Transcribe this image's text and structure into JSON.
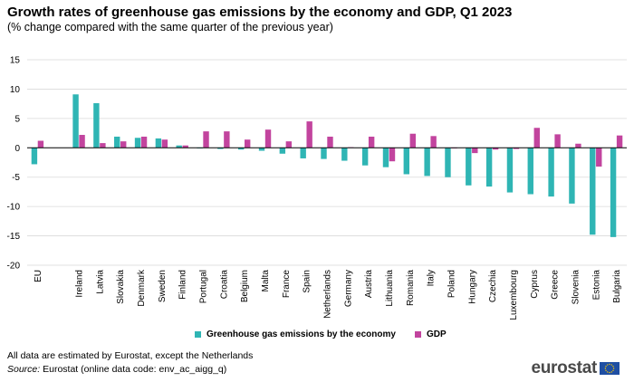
{
  "title": "Growth rates of greenhouse gas emissions by the economy and GDP, Q1 2023",
  "subtitle": "(% change compared with the same quarter of the previous year)",
  "footnote": "All data are estimated by Eurostat, except the Netherlands",
  "source_label": "Source:",
  "source_text": " Eurostat (online data code: env_ac_aigg_q)",
  "logo_text": "eurostat",
  "colors": {
    "ghg": "#2fb5b4",
    "gdp": "#c2449e",
    "grid": "#d9d9d9",
    "axis": "#000000"
  },
  "chart_data": {
    "type": "bar",
    "categories": [
      "EU",
      "Ireland",
      "Latvia",
      "Slovakia",
      "Denmark",
      "Sweden",
      "Finland",
      "Portugal",
      "Croatia",
      "Belgium",
      "Malta",
      "France",
      "Spain",
      "Netherlands",
      "Germany",
      "Austria",
      "Lithuania",
      "Romania",
      "Italy",
      "Poland",
      "Hungary",
      "Czechia",
      "Luxembourg",
      "Cyprus",
      "Greece",
      "Slovenia",
      "Estonia",
      "Bulgaria"
    ],
    "gap_after_first_category": true,
    "series": [
      {
        "name": "Greenhouse gas emissions by the economy",
        "values": [
          -2.8,
          9.1,
          7.6,
          1.9,
          1.7,
          1.6,
          0.4,
          -0.1,
          -0.2,
          -0.3,
          -0.5,
          -1.0,
          -1.8,
          -1.9,
          -2.2,
          -3.0,
          -3.3,
          -4.5,
          -4.8,
          -5.0,
          -6.4,
          -6.6,
          -7.6,
          -7.9,
          -8.3,
          -9.5,
          -14.8,
          -15.2
        ]
      },
      {
        "name": "GDP",
        "values": [
          1.2,
          2.2,
          0.8,
          1.1,
          1.9,
          1.4,
          0.4,
          2.8,
          2.8,
          1.4,
          3.1,
          1.1,
          4.5,
          1.9,
          0.1,
          1.9,
          -2.3,
          2.4,
          2.0,
          -0.1,
          -0.9,
          -0.3,
          -0.2,
          3.4,
          2.3,
          0.7,
          -3.2,
          2.1
        ]
      }
    ],
    "ylim": [
      -20,
      15
    ],
    "yticks": [
      15,
      10,
      5,
      0,
      -5,
      -10,
      -15,
      -20
    ],
    "ytick_labels": [
      "15",
      "10",
      "5",
      "0",
      "-5",
      "-10",
      "-15",
      "-20"
    ],
    "grid": true,
    "legend_position": "bottom-center",
    "xlabel": "",
    "ylabel": ""
  }
}
